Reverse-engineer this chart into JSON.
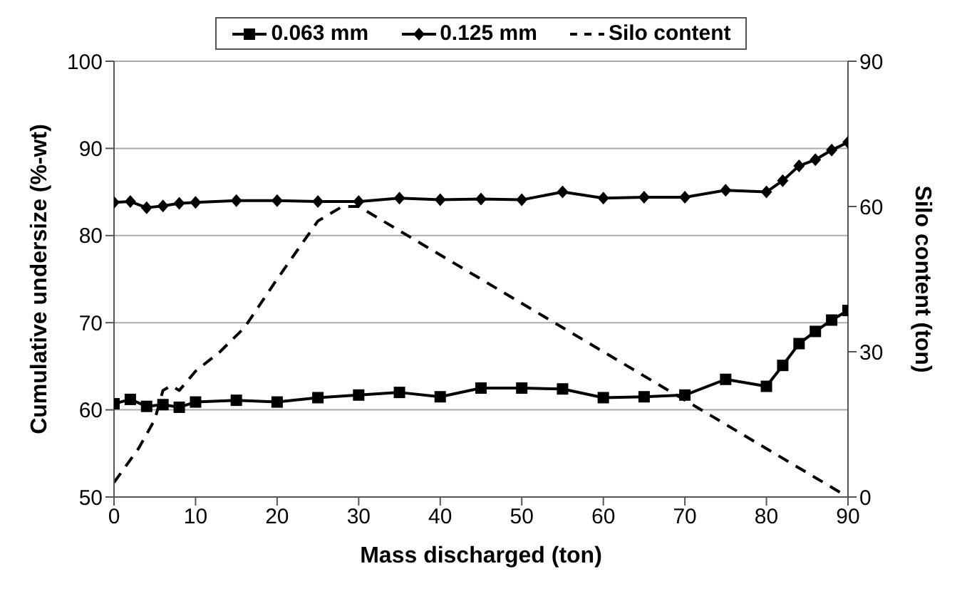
{
  "chart_data": {
    "type": "line",
    "xlabel": "Mass discharged (ton)",
    "ylabel": "Cumulative undersize (%-wt)",
    "y2label": "Silo content (ton)",
    "xlim": [
      0,
      90
    ],
    "xticks": [
      0,
      10,
      20,
      30,
      40,
      50,
      60,
      70,
      80,
      90
    ],
    "ylim": [
      50,
      100
    ],
    "yticks": [
      50,
      60,
      70,
      80,
      90,
      100
    ],
    "y2lim": [
      0,
      90
    ],
    "y2ticks": [
      0,
      30,
      60,
      90
    ],
    "grid": "y",
    "legend": "top",
    "series": [
      {
        "name": "0.063 mm",
        "color": "#000000",
        "marker": "square",
        "line_style": "solid",
        "x": [
          0,
          2,
          4,
          6,
          8,
          10,
          15,
          20,
          25,
          30,
          35,
          40,
          45,
          50,
          55,
          60,
          65,
          70,
          75,
          80,
          82,
          84,
          86,
          88,
          90
        ],
        "values": [
          60.7,
          61.2,
          60.4,
          60.6,
          60.3,
          60.9,
          61.1,
          60.9,
          61.4,
          61.7,
          62.0,
          61.5,
          62.5,
          62.5,
          62.4,
          61.4,
          61.5,
          61.7,
          63.5,
          62.7,
          65.1,
          67.6,
          69.0,
          70.3,
          71.4
        ]
      },
      {
        "name": "0.125 mm",
        "color": "#000000",
        "marker": "diamond",
        "line_style": "solid",
        "x": [
          0,
          2,
          4,
          6,
          8,
          10,
          15,
          20,
          25,
          30,
          35,
          40,
          45,
          50,
          55,
          60,
          65,
          70,
          75,
          80,
          82,
          84,
          86,
          88,
          90
        ],
        "values": [
          83.8,
          83.9,
          83.2,
          83.4,
          83.7,
          83.8,
          84.0,
          84.0,
          83.9,
          83.9,
          84.3,
          84.1,
          84.2,
          84.1,
          85.0,
          84.3,
          84.4,
          84.4,
          85.2,
          85.0,
          86.3,
          88.0,
          88.7,
          89.8,
          90.7
        ]
      },
      {
        "name": "Silo content",
        "color": "#000000",
        "marker": "none",
        "line_style": "dashed",
        "axis": "y2",
        "x": [
          0,
          3,
          5,
          6,
          7,
          8,
          10,
          13,
          16,
          20,
          25,
          28,
          30,
          40,
          50,
          60,
          70,
          80,
          90
        ],
        "values": [
          3,
          10,
          16,
          22,
          23,
          22,
          26,
          30,
          35,
          45,
          57,
          60,
          60,
          50,
          40,
          30,
          20,
          10,
          0
        ]
      }
    ]
  }
}
